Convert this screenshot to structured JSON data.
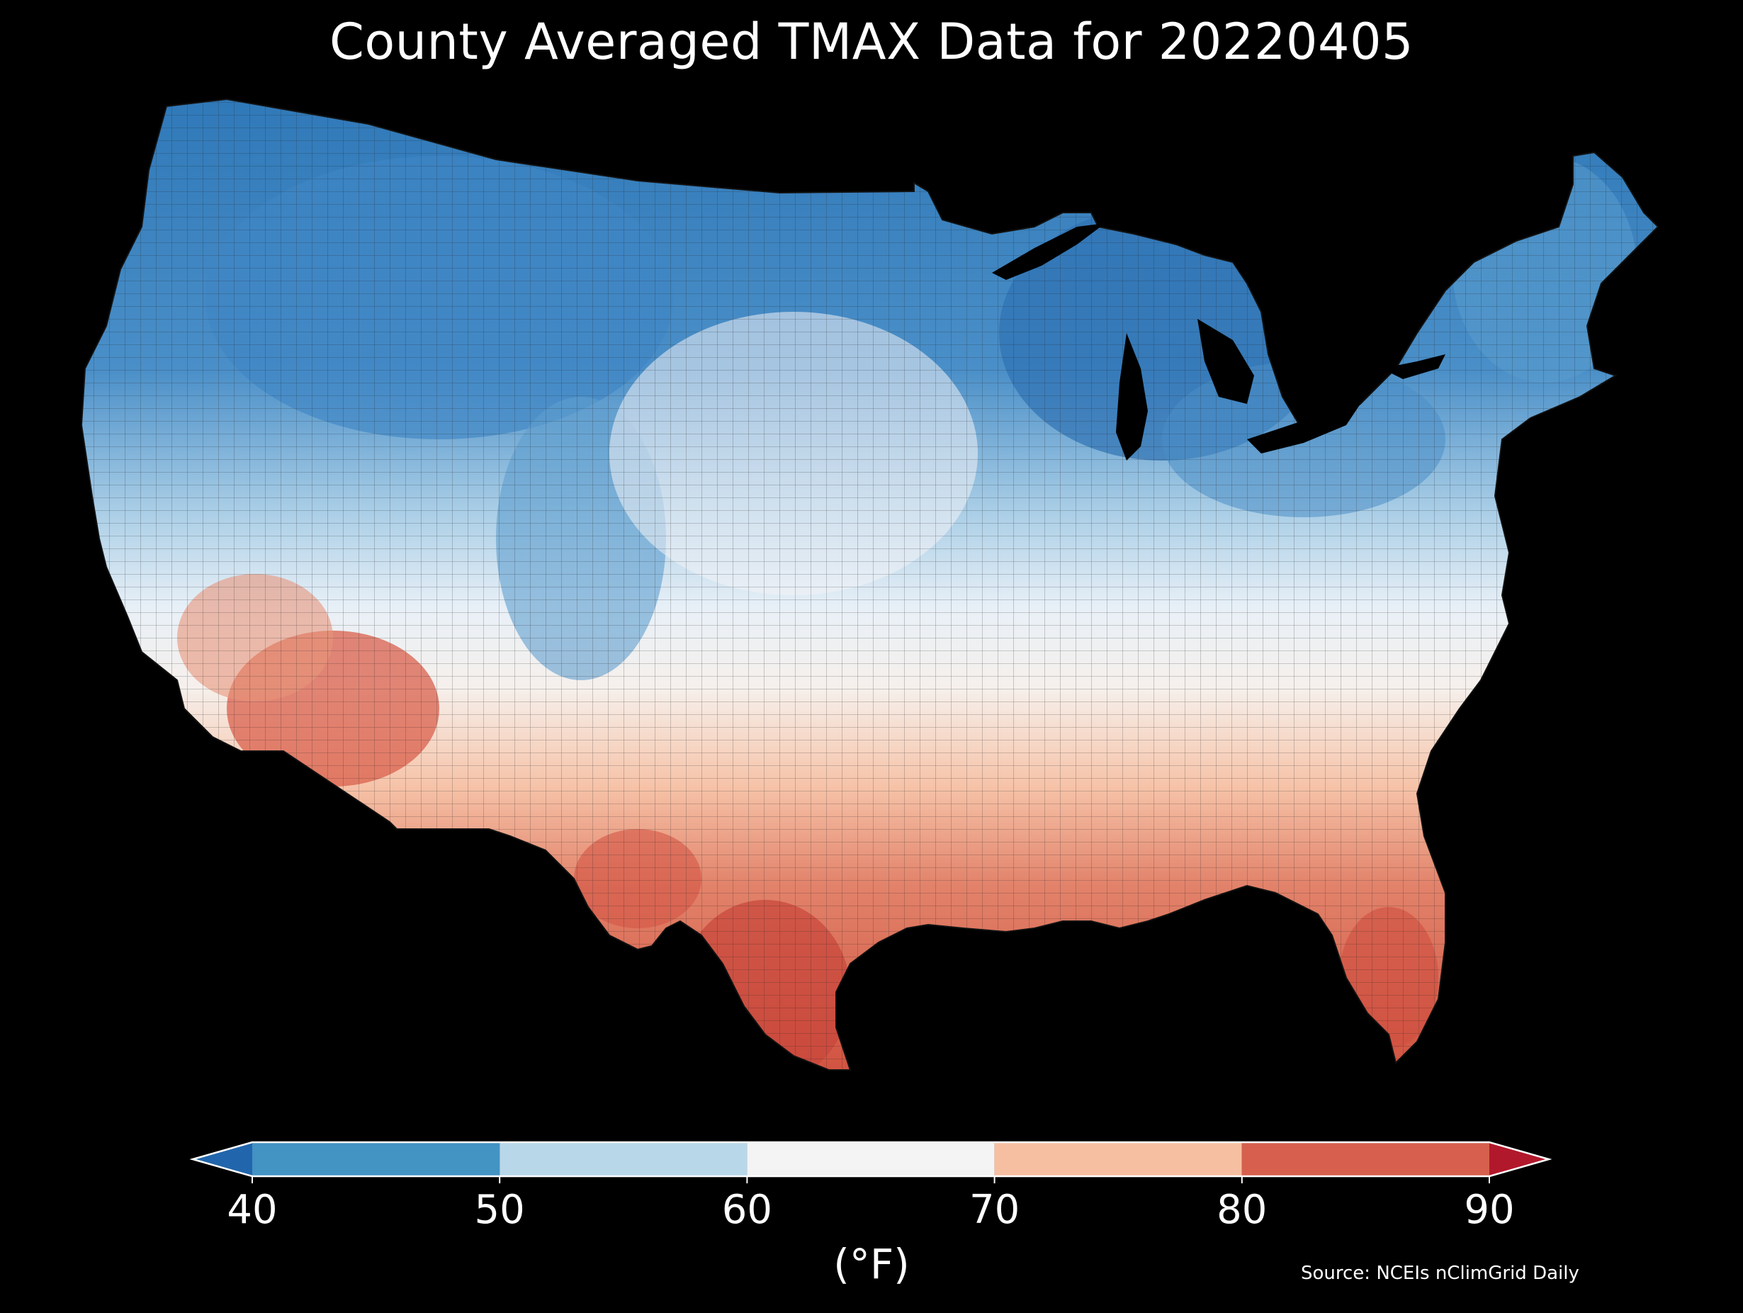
{
  "title": "County Averaged TMAX Data for 20220405",
  "colorbar": {
    "units_label": "(°F)",
    "ticks": [
      "40",
      "50",
      "60",
      "70",
      "80",
      "90"
    ],
    "bins": [
      {
        "from": null,
        "to": 40,
        "color": "#2166ac"
      },
      {
        "from": 40,
        "to": 50,
        "color": "#4393c3"
      },
      {
        "from": 50,
        "to": 60,
        "color": "#b8d8ea"
      },
      {
        "from": 60,
        "to": 70,
        "color": "#f4f4f4"
      },
      {
        "from": 70,
        "to": 80,
        "color": "#f7bfa1"
      },
      {
        "from": 80,
        "to": 90,
        "color": "#d6604d"
      },
      {
        "from": 90,
        "to": null,
        "color": "#b2182b"
      }
    ],
    "extend": "both"
  },
  "source": "Source: NCEIs nClimGrid Daily",
  "map": {
    "region": "Contiguous United States",
    "variable": "TMAX",
    "date": "20220405",
    "border_color": "#111111"
  }
}
